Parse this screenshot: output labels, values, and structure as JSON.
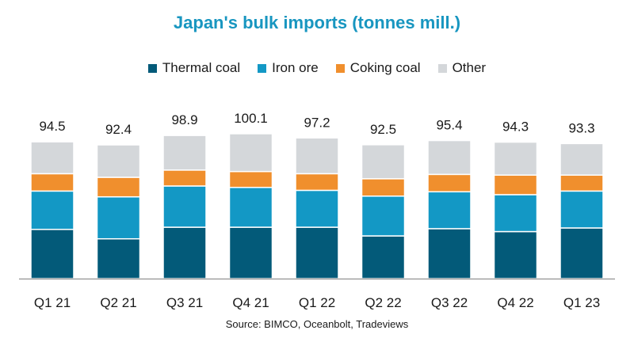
{
  "chart_data": {
    "type": "bar",
    "stacked": true,
    "title": "Japan's bulk imports (tonnes mill.)",
    "source": "Source: BIMCO, Oceanbolt, Tradeviews",
    "categories": [
      "Q1 21",
      "Q2 21",
      "Q3 21",
      "Q4 21",
      "Q1 22",
      "Q2 22",
      "Q3 22",
      "Q4 22",
      "Q1 23"
    ],
    "totals": [
      "94.5",
      "92.4",
      "98.9",
      "100.1",
      "97.2",
      "92.5",
      "95.4",
      "94.3",
      "93.3"
    ],
    "series": [
      {
        "name": "Thermal coal",
        "color": "#035a79",
        "values": [
          34.0,
          27.5,
          35.5,
          35.5,
          35.5,
          29.5,
          34.5,
          32.5,
          35.0
        ]
      },
      {
        "name": "Iron ore",
        "color": "#1398c5",
        "values": [
          26.5,
          29.0,
          28.5,
          27.5,
          25.5,
          27.5,
          25.5,
          25.5,
          25.5
        ]
      },
      {
        "name": "Coking coal",
        "color": "#f08f2d",
        "values": [
          12.0,
          13.5,
          11.0,
          11.0,
          11.5,
          12.0,
          12.0,
          13.5,
          11.0
        ]
      },
      {
        "name": "Other",
        "color": "#d4d7da",
        "values": [
          22.0,
          22.4,
          23.9,
          26.1,
          24.7,
          23.5,
          23.4,
          22.8,
          21.8
        ]
      }
    ],
    "ylim": [
      0,
      105
    ],
    "legend_position": "top-center",
    "grid": false,
    "title_color": "#1896c0"
  }
}
